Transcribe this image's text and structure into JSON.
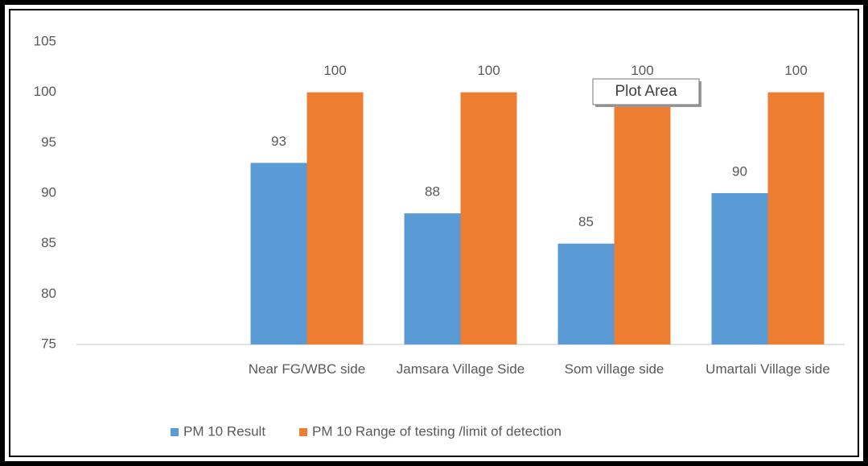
{
  "chart_data": {
    "type": "bar",
    "categories": [
      null,
      "Near FG/WBC side",
      "Jamsara Village Side",
      "Som village side",
      "Umartali Village side"
    ],
    "series": [
      {
        "name": "PM 10 Result",
        "color": "#5b9bd5",
        "values": [
          null,
          93,
          88,
          85,
          90
        ]
      },
      {
        "name": "PM 10 Range of testing /limit of detection",
        "color": "#ed7d31",
        "values": [
          null,
          100,
          100,
          100,
          100
        ]
      }
    ],
    "ylim": [
      75,
      105
    ],
    "yticks": [
      75,
      80,
      85,
      90,
      95,
      100,
      105
    ],
    "grid": false,
    "legend": "bottom",
    "tooltip": "Plot Area"
  }
}
